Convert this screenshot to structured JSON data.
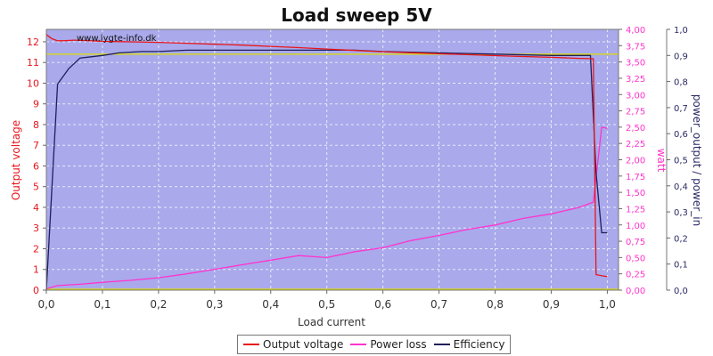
{
  "chart_data": {
    "type": "line",
    "title": "Load sweep 5V",
    "watermark": "www.lygte-info.dk",
    "xlabel": "Load current",
    "ylabel_left": "Output voltage",
    "ylabel_power": "watt",
    "ylabel_eff": "power_output / power_in",
    "xlim": [
      0,
      1.02
    ],
    "ylim_left": [
      0,
      12.6
    ],
    "ylim_power": [
      0,
      4.0
    ],
    "ylim_eff": [
      0,
      1.0
    ],
    "x_ticks": [
      "0,0",
      "0,1",
      "0,2",
      "0,3",
      "0,4",
      "0,5",
      "0,6",
      "0,7",
      "0,8",
      "0,9",
      "1,0"
    ],
    "x_tick_values": [
      0,
      0.1,
      0.2,
      0.3,
      0.4,
      0.5,
      0.6,
      0.7,
      0.8,
      0.9,
      1.0
    ],
    "left_ticks": [
      "0",
      "1",
      "2",
      "3",
      "4",
      "5",
      "6",
      "7",
      "8",
      "9",
      "10",
      "11",
      "12"
    ],
    "left_tick_values": [
      0,
      1,
      2,
      3,
      4,
      5,
      6,
      7,
      8,
      9,
      10,
      11,
      12
    ],
    "power_ticks": [
      "0,00",
      "0,25",
      "0,50",
      "0,75",
      "1,00",
      "1,25",
      "1,50",
      "1,75",
      "2,00",
      "2,25",
      "2,50",
      "2,75",
      "3,00",
      "3,25",
      "3,50",
      "3,75",
      "4,00"
    ],
    "power_tick_values": [
      0,
      0.25,
      0.5,
      0.75,
      1.0,
      1.25,
      1.5,
      1.75,
      2.0,
      2.25,
      2.5,
      2.75,
      3.0,
      3.25,
      3.5,
      3.75,
      4.0
    ],
    "eff_ticks": [
      "0,0",
      "0,1",
      "0,2",
      "0,3",
      "0,4",
      "0,5",
      "0,6",
      "0,7",
      "0,8",
      "0,9",
      "1,0"
    ],
    "eff_tick_values": [
      0,
      0.1,
      0.2,
      0.3,
      0.4,
      0.5,
      0.6,
      0.7,
      0.8,
      0.9,
      1.0
    ],
    "reference_line_voltage": 11.4,
    "grid": true,
    "legend_position": "bottom",
    "series": [
      {
        "name": "Output voltage",
        "axis": "left",
        "color": "#e8161b",
        "x": [
          0.0,
          0.01,
          0.02,
          0.03,
          0.05,
          0.08,
          0.1,
          0.15,
          0.2,
          0.25,
          0.3,
          0.35,
          0.4,
          0.45,
          0.5,
          0.55,
          0.6,
          0.65,
          0.7,
          0.75,
          0.8,
          0.85,
          0.9,
          0.95,
          0.975,
          0.98,
          1.0
        ],
        "y": [
          12.35,
          12.15,
          12.05,
          12.05,
          12.08,
          12.05,
          12.02,
          12.0,
          11.97,
          11.93,
          11.88,
          11.84,
          11.78,
          11.72,
          11.65,
          11.58,
          11.52,
          11.47,
          11.42,
          11.38,
          11.33,
          11.29,
          11.25,
          11.2,
          11.18,
          0.75,
          0.65
        ]
      },
      {
        "name": "Power loss",
        "axis": "power",
        "color": "#ff33cc",
        "x": [
          0.0,
          0.02,
          0.04,
          0.06,
          0.1,
          0.15,
          0.2,
          0.25,
          0.3,
          0.35,
          0.4,
          0.45,
          0.5,
          0.55,
          0.6,
          0.65,
          0.7,
          0.75,
          0.8,
          0.85,
          0.9,
          0.95,
          0.975,
          0.99,
          1.0
        ],
        "y": [
          0.02,
          0.07,
          0.08,
          0.09,
          0.12,
          0.15,
          0.19,
          0.25,
          0.32,
          0.39,
          0.46,
          0.53,
          0.5,
          0.59,
          0.65,
          0.76,
          0.84,
          0.93,
          1.0,
          1.1,
          1.17,
          1.27,
          1.35,
          2.5,
          2.48
        ]
      },
      {
        "name": "Efficiency",
        "axis": "eff",
        "color": "#1f1f5e",
        "x": [
          0.0,
          0.02,
          0.04,
          0.06,
          0.08,
          0.1,
          0.13,
          0.17,
          0.2,
          0.25,
          0.3,
          0.4,
          0.5,
          0.55,
          0.6,
          0.7,
          0.8,
          0.9,
          0.97,
          0.98,
          0.99,
          1.0
        ],
        "y": [
          0.0,
          0.79,
          0.85,
          0.89,
          0.895,
          0.9,
          0.91,
          0.915,
          0.915,
          0.92,
          0.92,
          0.92,
          0.92,
          0.92,
          0.915,
          0.91,
          0.905,
          0.9,
          0.9,
          0.45,
          0.22,
          0.22
        ]
      }
    ]
  }
}
